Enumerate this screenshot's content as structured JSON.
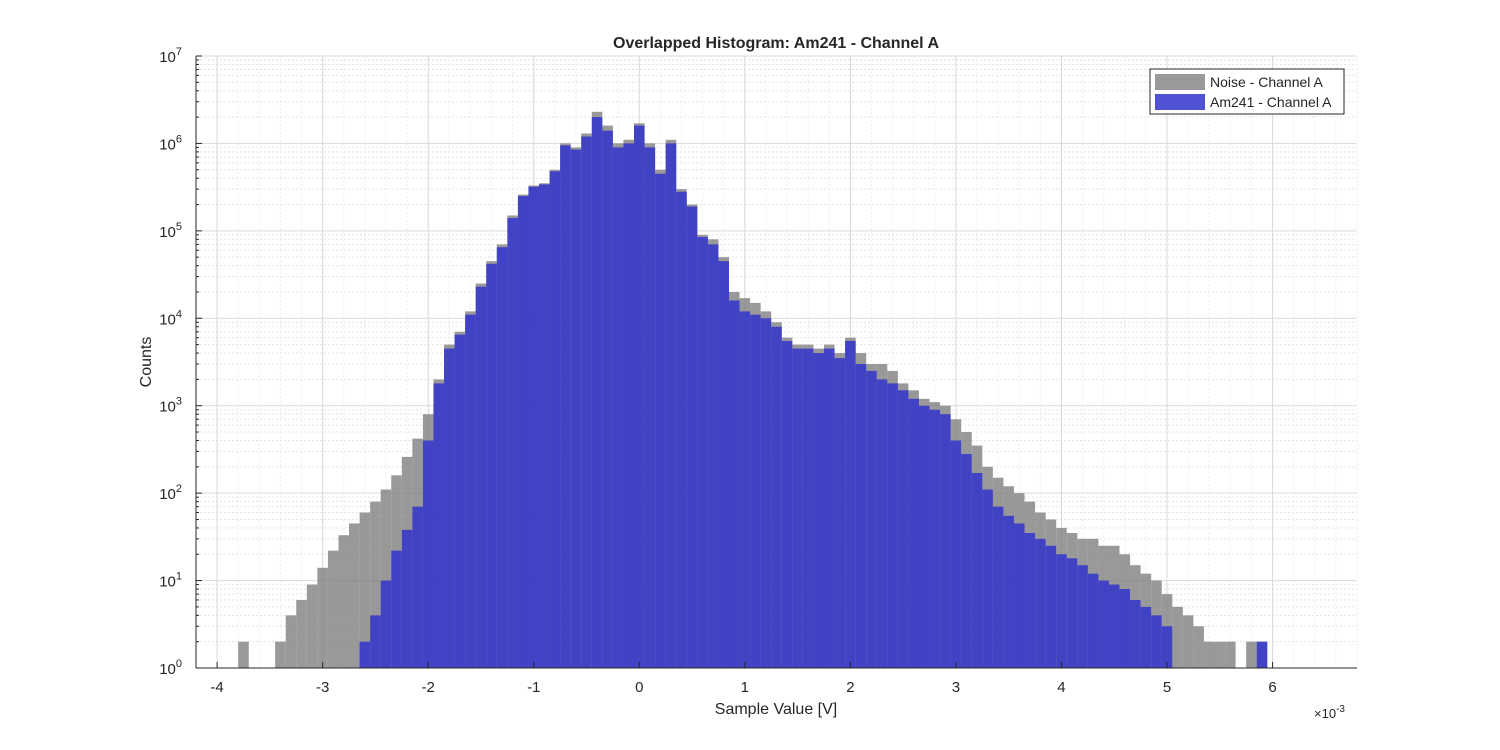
{
  "chart_data": {
    "type": "bar",
    "title": "Overlapped Histogram: Am241 - Channel A",
    "xlabel": "Sample Value [V]",
    "ylabel": "Counts",
    "x_exponent_label": "×10",
    "x_exponent_power": "-3",
    "x_scale_note": "values in units of 1e-3 V",
    "xlim": [
      -4.2,
      6.8
    ],
    "ylim": [
      1,
      10000000
    ],
    "y_scale": "log",
    "grid": true,
    "legend_position": "top-right",
    "x_ticks": [
      {
        "value": -4,
        "label": "-4"
      },
      {
        "value": -3,
        "label": "-3"
      },
      {
        "value": -2,
        "label": "-2"
      },
      {
        "value": -1,
        "label": "-1"
      },
      {
        "value": 0,
        "label": "0"
      },
      {
        "value": 1,
        "label": "1"
      },
      {
        "value": 2,
        "label": "2"
      },
      {
        "value": 3,
        "label": "3"
      },
      {
        "value": 4,
        "label": "4"
      },
      {
        "value": 5,
        "label": "5"
      },
      {
        "value": 6,
        "label": "6"
      }
    ],
    "y_ticks": [
      {
        "value": 1,
        "base": "10",
        "exp": "0"
      },
      {
        "value": 10,
        "base": "10",
        "exp": "1"
      },
      {
        "value": 100,
        "base": "10",
        "exp": "2"
      },
      {
        "value": 1000,
        "base": "10",
        "exp": "3"
      },
      {
        "value": 10000,
        "base": "10",
        "exp": "4"
      },
      {
        "value": 100000,
        "base": "10",
        "exp": "5"
      },
      {
        "value": 1000000,
        "base": "10",
        "exp": "6"
      },
      {
        "value": 10000000,
        "base": "10",
        "exp": "7"
      }
    ],
    "series": [
      {
        "name": "Noise - Channel A",
        "color": "#808080",
        "opacity": 0.8,
        "points": [
          [
            -4.0,
            1
          ],
          [
            -3.75,
            2
          ],
          [
            -3.4,
            2
          ],
          [
            -3.3,
            4
          ],
          [
            -3.2,
            6
          ],
          [
            -3.1,
            9
          ],
          [
            -3.0,
            14
          ],
          [
            -2.9,
            22
          ],
          [
            -2.8,
            33
          ],
          [
            -2.7,
            45
          ],
          [
            -2.6,
            60
          ],
          [
            -2.5,
            80
          ],
          [
            -2.4,
            110
          ],
          [
            -2.3,
            160
          ],
          [
            -2.2,
            260
          ],
          [
            -2.1,
            420
          ],
          [
            -2.0,
            800
          ],
          [
            -1.9,
            2000
          ],
          [
            -1.8,
            5000
          ],
          [
            -1.7,
            7000
          ],
          [
            -1.6,
            12000
          ],
          [
            -1.5,
            25000
          ],
          [
            -1.4,
            45000
          ],
          [
            -1.3,
            70000
          ],
          [
            -1.2,
            150000
          ],
          [
            -1.1,
            260000
          ],
          [
            -1.0,
            330000
          ],
          [
            -0.9,
            350000
          ],
          [
            -0.8,
            500000
          ],
          [
            -0.7,
            1000000
          ],
          [
            -0.6,
            900000
          ],
          [
            -0.5,
            1300000
          ],
          [
            -0.4,
            2300000
          ],
          [
            -0.3,
            1600000
          ],
          [
            -0.2,
            1000000
          ],
          [
            -0.1,
            1100000
          ],
          [
            0.0,
            1700000
          ],
          [
            0.1,
            1000000
          ],
          [
            0.2,
            500000
          ],
          [
            0.3,
            1100000
          ],
          [
            0.4,
            300000
          ],
          [
            0.5,
            200000
          ],
          [
            0.6,
            90000
          ],
          [
            0.7,
            80000
          ],
          [
            0.8,
            50000
          ],
          [
            0.9,
            20000
          ],
          [
            1.0,
            17000
          ],
          [
            1.1,
            15000
          ],
          [
            1.2,
            12000
          ],
          [
            1.3,
            9000
          ],
          [
            1.4,
            6000
          ],
          [
            1.5,
            5000
          ],
          [
            1.6,
            5000
          ],
          [
            1.7,
            4500
          ],
          [
            1.8,
            5000
          ],
          [
            1.9,
            4000
          ],
          [
            2.0,
            6000
          ],
          [
            2.1,
            4000
          ],
          [
            2.2,
            3000
          ],
          [
            2.3,
            3000
          ],
          [
            2.4,
            2500
          ],
          [
            2.5,
            1800
          ],
          [
            2.6,
            1500
          ],
          [
            2.7,
            1200
          ],
          [
            2.8,
            1100
          ],
          [
            2.9,
            1000
          ],
          [
            3.0,
            700
          ],
          [
            3.1,
            500
          ],
          [
            3.2,
            350
          ],
          [
            3.3,
            200
          ],
          [
            3.4,
            150
          ],
          [
            3.5,
            120
          ],
          [
            3.6,
            100
          ],
          [
            3.7,
            80
          ],
          [
            3.8,
            60
          ],
          [
            3.9,
            50
          ],
          [
            4.0,
            40
          ],
          [
            4.1,
            35
          ],
          [
            4.2,
            30
          ],
          [
            4.3,
            30
          ],
          [
            4.4,
            25
          ],
          [
            4.5,
            25
          ],
          [
            4.6,
            20
          ],
          [
            4.7,
            15
          ],
          [
            4.8,
            12
          ],
          [
            4.9,
            10
          ],
          [
            5.0,
            7
          ],
          [
            5.1,
            5
          ],
          [
            5.2,
            4
          ],
          [
            5.3,
            3
          ],
          [
            5.4,
            2
          ],
          [
            5.5,
            2
          ],
          [
            5.6,
            2
          ],
          [
            5.8,
            2
          ],
          [
            5.9,
            2
          ],
          [
            6.0,
            1
          ]
        ]
      },
      {
        "name": "Am241 - Channel A",
        "color": "#3333cc",
        "opacity": 0.85,
        "points": [
          [
            -2.6,
            2
          ],
          [
            -2.5,
            4
          ],
          [
            -2.4,
            10
          ],
          [
            -2.3,
            22
          ],
          [
            -2.2,
            38
          ],
          [
            -2.1,
            70
          ],
          [
            -2.0,
            400
          ],
          [
            -1.9,
            1800
          ],
          [
            -1.8,
            4500
          ],
          [
            -1.7,
            6500
          ],
          [
            -1.6,
            11000
          ],
          [
            -1.5,
            23000
          ],
          [
            -1.4,
            42000
          ],
          [
            -1.3,
            65000
          ],
          [
            -1.2,
            140000
          ],
          [
            -1.1,
            250000
          ],
          [
            -1.0,
            320000
          ],
          [
            -0.9,
            340000
          ],
          [
            -0.8,
            480000
          ],
          [
            -0.7,
            950000
          ],
          [
            -0.6,
            850000
          ],
          [
            -0.5,
            1200000
          ],
          [
            -0.4,
            2000000
          ],
          [
            -0.3,
            1400000
          ],
          [
            -0.2,
            900000
          ],
          [
            -0.1,
            1000000
          ],
          [
            0.0,
            1600000
          ],
          [
            0.1,
            900000
          ],
          [
            0.2,
            450000
          ],
          [
            0.3,
            1000000
          ],
          [
            0.4,
            280000
          ],
          [
            0.5,
            190000
          ],
          [
            0.6,
            85000
          ],
          [
            0.7,
            70000
          ],
          [
            0.8,
            45000
          ],
          [
            0.9,
            16000
          ],
          [
            1.0,
            12000
          ],
          [
            1.1,
            11000
          ],
          [
            1.2,
            10000
          ],
          [
            1.3,
            8000
          ],
          [
            1.4,
            5500
          ],
          [
            1.5,
            4500
          ],
          [
            1.6,
            4500
          ],
          [
            1.7,
            4000
          ],
          [
            1.8,
            4500
          ],
          [
            1.9,
            3500
          ],
          [
            2.0,
            5500
          ],
          [
            2.1,
            3000
          ],
          [
            2.2,
            2500
          ],
          [
            2.3,
            2000
          ],
          [
            2.4,
            1800
          ],
          [
            2.5,
            1500
          ],
          [
            2.6,
            1200
          ],
          [
            2.7,
            1000
          ],
          [
            2.8,
            900
          ],
          [
            2.9,
            800
          ],
          [
            3.0,
            400
          ],
          [
            3.1,
            280
          ],
          [
            3.2,
            170
          ],
          [
            3.3,
            110
          ],
          [
            3.4,
            70
          ],
          [
            3.5,
            55
          ],
          [
            3.6,
            45
          ],
          [
            3.7,
            35
          ],
          [
            3.8,
            30
          ],
          [
            3.9,
            25
          ],
          [
            4.0,
            20
          ],
          [
            4.1,
            18
          ],
          [
            4.2,
            15
          ],
          [
            4.3,
            12
          ],
          [
            4.4,
            10
          ],
          [
            4.5,
            9
          ],
          [
            4.6,
            8
          ],
          [
            4.7,
            6
          ],
          [
            4.8,
            5
          ],
          [
            4.9,
            4
          ],
          [
            5.0,
            3
          ],
          [
            5.9,
            2
          ]
        ]
      }
    ]
  }
}
